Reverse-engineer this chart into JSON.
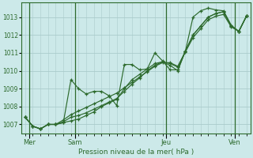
{
  "background_color": "#cce9e9",
  "grid_color": "#aacccc",
  "line_color": "#2d6a2d",
  "title": "Pression niveau de la mer( hPa )",
  "ylim": [
    1006.5,
    1013.8
  ],
  "yticks": [
    1007,
    1008,
    1009,
    1010,
    1011,
    1012,
    1013
  ],
  "day_labels": [
    "Mer",
    "Sam",
    "Jeu",
    "Ven"
  ],
  "day_positions": [
    0.5,
    6.5,
    18.5,
    27.5
  ],
  "vline_positions": [
    0.5,
    6.5,
    18.5,
    27.5
  ],
  "total_points": 30,
  "series": [
    [
      1007.4,
      1006.9,
      1006.75,
      1007.0,
      1007.0,
      1007.1,
      1009.5,
      1009.0,
      1008.7,
      1008.85,
      1008.85,
      1008.6,
      1008.05,
      1010.35,
      1010.35,
      1010.05,
      1010.1,
      1011.0,
      1010.55,
      1010.05,
      1010.05,
      1011.1,
      1013.0,
      1013.35,
      1013.5,
      1013.4,
      1013.35,
      1012.55,
      1012.2,
      1013.05
    ],
    [
      1007.4,
      1006.9,
      1006.75,
      1007.0,
      1007.0,
      1007.1,
      1007.2,
      1007.3,
      1007.5,
      1007.7,
      1008.0,
      1008.2,
      1008.4,
      1009.0,
      1009.5,
      1009.8,
      1010.1,
      1010.4,
      1010.5,
      1010.3,
      1010.0,
      1011.1,
      1012.0,
      1012.5,
      1013.0,
      1013.2,
      1013.3,
      1012.5,
      1012.2,
      1013.05
    ],
    [
      1007.4,
      1006.9,
      1006.75,
      1007.0,
      1007.0,
      1007.15,
      1007.4,
      1007.5,
      1007.65,
      1007.85,
      1008.05,
      1008.25,
      1008.45,
      1008.85,
      1009.25,
      1009.6,
      1010.0,
      1010.3,
      1010.5,
      1010.4,
      1010.2,
      1011.1,
      1012.0,
      1012.5,
      1013.0,
      1013.2,
      1013.3,
      1012.5,
      1012.2,
      1013.05
    ],
    [
      1007.4,
      1006.9,
      1006.75,
      1007.0,
      1007.0,
      1007.25,
      1007.55,
      1007.75,
      1007.95,
      1008.15,
      1008.35,
      1008.55,
      1008.75,
      1009.05,
      1009.35,
      1009.65,
      1009.95,
      1010.25,
      1010.45,
      1010.45,
      1010.25,
      1011.05,
      1011.85,
      1012.35,
      1012.85,
      1013.05,
      1013.15,
      1012.45,
      1012.2,
      1013.05
    ]
  ]
}
